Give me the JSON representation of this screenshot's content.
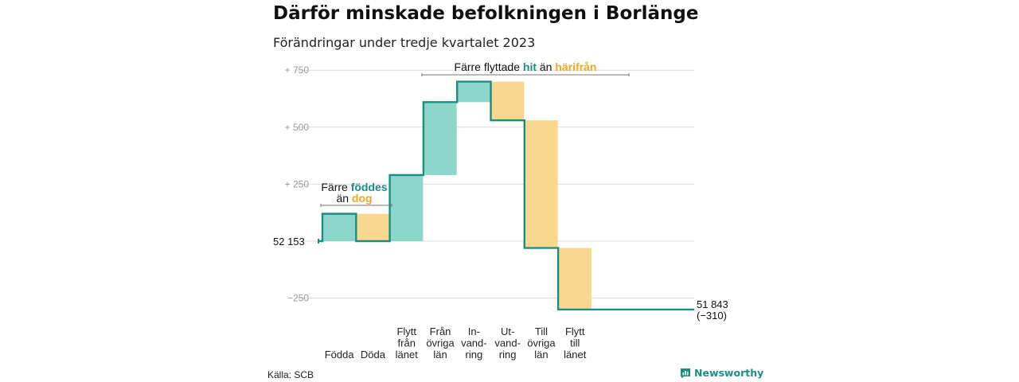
{
  "title": "Därför minskade befolkningen i Borlänge",
  "subtitle": "Förändringar under tredje kvartalet 2023",
  "source": "Källa: SCB",
  "brand": {
    "name": "Newsworthy",
    "icon": "newsworthy-logo-icon",
    "color": "#1a9080"
  },
  "colors": {
    "increase": "#8dd6cc",
    "decrease": "#fad78e",
    "line": "#179083",
    "grid": "#dedede",
    "bracket": "#777777",
    "tick": "#999999"
  },
  "chart_data": {
    "type": "waterfall",
    "title": "Därför minskade befolkningen i Borlänge",
    "subtitle": "Förändringar under tredje kvartalet 2023",
    "start": {
      "label": "52  153",
      "value": 52153
    },
    "end": {
      "label": "51 843",
      "change_label": "(−310)",
      "value": 51843,
      "change": -310
    },
    "ylim": [
      -330,
      800
    ],
    "yticks": [
      {
        "value": 750,
        "label": "+  750"
      },
      {
        "value": 500,
        "label": "+  500"
      },
      {
        "value": 250,
        "label": "+  250"
      },
      {
        "value": -250,
        "label": "−250"
      }
    ],
    "grid": true,
    "steps": [
      {
        "label": "Födda",
        "lines": [
          "Födda"
        ],
        "change": 120,
        "kind": "increase"
      },
      {
        "label": "Döda",
        "lines": [
          "Döda"
        ],
        "change": -120,
        "kind": "decrease"
      },
      {
        "label": "Flytt från länet",
        "lines": [
          "Flytt",
          "från",
          "länet"
        ],
        "change": 290,
        "kind": "increase"
      },
      {
        "label": "Från övriga län",
        "lines": [
          "Från",
          "övriga",
          "län"
        ],
        "change": 320,
        "kind": "increase"
      },
      {
        "label": "In-vandring",
        "lines": [
          "In-",
          "vand-",
          "ring"
        ],
        "change": 90,
        "kind": "increase"
      },
      {
        "label": "Ut-vandring",
        "lines": [
          "Ut-",
          "vand-",
          "ring"
        ],
        "change": -170,
        "kind": "decrease"
      },
      {
        "label": "Till övriga län",
        "lines": [
          "Till",
          "övriga",
          "län"
        ],
        "change": -560,
        "kind": "decrease"
      },
      {
        "label": "Flytt till länet",
        "lines": [
          "Flytt",
          "till",
          "länet"
        ],
        "change": -270,
        "kind": "decrease"
      }
    ],
    "annotations": [
      {
        "id": "births",
        "lines": [
          [
            {
              "text": "Färre ",
              "kind": "plain"
            },
            {
              "text": "föddes",
              "kind": "increase"
            }
          ],
          [
            {
              "text": "än ",
              "kind": "plain"
            },
            {
              "text": "dog",
              "kind": "decrease"
            }
          ]
        ]
      },
      {
        "id": "migration",
        "lines": [
          [
            {
              "text": "Färre flyttade ",
              "kind": "plain"
            },
            {
              "text": "hit",
              "kind": "increase"
            },
            {
              "text": "  än ",
              "kind": "plain"
            },
            {
              "text": "härifrån",
              "kind": "decrease"
            }
          ]
        ]
      }
    ]
  }
}
